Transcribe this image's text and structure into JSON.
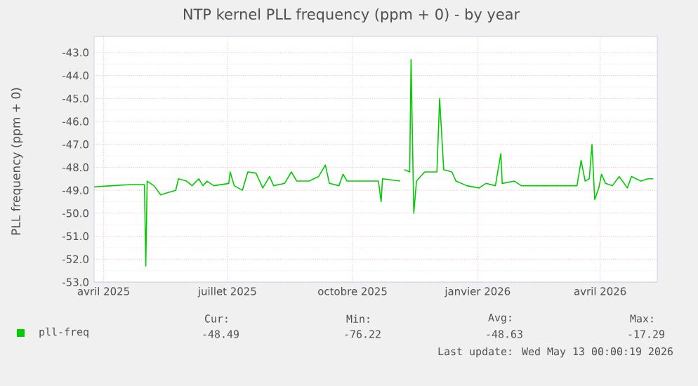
{
  "chart_data": {
    "type": "line",
    "title": "NTP kernel PLL frequency (ppm + 0) - by year",
    "ylabel": "PLL frequency (ppm + 0)",
    "xlim": [
      "2025-03-25",
      "2026-05-13"
    ],
    "ylim": [
      -53,
      -42.3
    ],
    "xticks": [
      {
        "value": "2025-04-01",
        "label": "avril 2025"
      },
      {
        "value": "2025-07-01",
        "label": "juillet 2025"
      },
      {
        "value": "2025-10-01",
        "label": "octobre 2025"
      },
      {
        "value": "2026-01-01",
        "label": "janvier 2026"
      },
      {
        "value": "2026-04-01",
        "label": "avril 2026"
      }
    ],
    "yticks": [
      {
        "value": -53,
        "label": "-53.0"
      },
      {
        "value": -52,
        "label": "-52.0"
      },
      {
        "value": -51,
        "label": "-51.0"
      },
      {
        "value": -50,
        "label": "-50.0"
      },
      {
        "value": -49,
        "label": "-49.0"
      },
      {
        "value": -48,
        "label": "-48.0"
      },
      {
        "value": -47,
        "label": "-47.0"
      },
      {
        "value": -46,
        "label": "-46.0"
      },
      {
        "value": -45,
        "label": "-45.0"
      },
      {
        "value": -44,
        "label": "-44.0"
      },
      {
        "value": -43,
        "label": "-43.0"
      }
    ],
    "grid": true,
    "legend": "bottom",
    "x": [
      "2025-03-25",
      "2025-04-07",
      "2025-04-21",
      "2025-05-01",
      "2025-05-02",
      "2025-05-03",
      "2025-05-08",
      "2025-05-13",
      "2025-05-18",
      "2025-05-24",
      "2025-05-26",
      "2025-06-01",
      "2025-06-05",
      "2025-06-10",
      "2025-06-13",
      "2025-06-16",
      "2025-06-21",
      "2025-07-02",
      "2025-07-03",
      "2025-07-06",
      "2025-07-12",
      "2025-07-16",
      "2025-07-22",
      "2025-07-27",
      "2025-08-01",
      "2025-08-04",
      "2025-08-12",
      "2025-08-17",
      "2025-08-21",
      "2025-08-30",
      "2025-09-06",
      "2025-09-11",
      "2025-09-14",
      "2025-09-21",
      "2025-09-24",
      "2025-09-27",
      "2025-09-29",
      "2025-10-10",
      "2025-10-20",
      "2025-10-22",
      "2025-10-23",
      "2025-11-05",
      "2025-11-07",
      "2025-11-08",
      "2025-11-12",
      "2025-11-13",
      "2025-11-15",
      "2025-11-17",
      "2025-11-20",
      "2025-11-23",
      "2025-12-02",
      "2025-12-04",
      "2025-12-07",
      "2025-12-13",
      "2025-12-16",
      "2025-12-24",
      "2026-01-02",
      "2026-01-07",
      "2026-01-14",
      "2026-01-18",
      "2026-01-19",
      "2026-01-28",
      "2026-02-02",
      "2026-03-15",
      "2026-03-18",
      "2026-03-21",
      "2026-03-24",
      "2026-03-26",
      "2026-03-28",
      "2026-03-31",
      "2026-04-02",
      "2026-04-05",
      "2026-04-10",
      "2026-04-15",
      "2026-04-21",
      "2026-04-24",
      "2026-05-01",
      "2026-05-06",
      "2026-05-10"
    ],
    "series": [
      {
        "name": "pll-freq",
        "color": "#00cc00",
        "values": [
          -48.85,
          -48.8,
          -48.75,
          -48.75,
          -52.3,
          -48.6,
          -48.8,
          -49.2,
          -49.1,
          -49.0,
          -48.5,
          -48.6,
          -48.8,
          -48.5,
          -48.8,
          -48.6,
          -48.8,
          -48.7,
          -48.2,
          -48.8,
          -49.0,
          -48.2,
          -48.25,
          -48.9,
          -48.4,
          -48.8,
          -48.7,
          -48.2,
          -48.6,
          -48.6,
          -48.4,
          -47.9,
          -48.7,
          -48.8,
          -48.3,
          -48.6,
          -48.6,
          -48.6,
          -48.6,
          -49.5,
          -48.5,
          -48.6,
          null,
          -48.1,
          -48.2,
          -43.3,
          -50.0,
          -48.6,
          -48.4,
          -48.2,
          -48.2,
          -45.0,
          -48.1,
          -48.2,
          -48.6,
          -48.8,
          -48.9,
          -48.7,
          -48.8,
          -47.4,
          -48.7,
          -48.6,
          -48.8,
          -48.8,
          -47.7,
          -48.6,
          -48.5,
          -47.0,
          -49.4,
          -48.9,
          -48.3,
          -48.7,
          -48.8,
          -48.4,
          -48.9,
          -48.4,
          -48.6,
          -48.5,
          -48.5
        ]
      }
    ],
    "annotations": [
      "Cur:",
      "-48.49",
      "Min:",
      "-76.22",
      "Avg:",
      "-48.63",
      "Max:",
      "-17.29",
      "Last update: Wed May 13 00:00:19 2026"
    ]
  }
}
